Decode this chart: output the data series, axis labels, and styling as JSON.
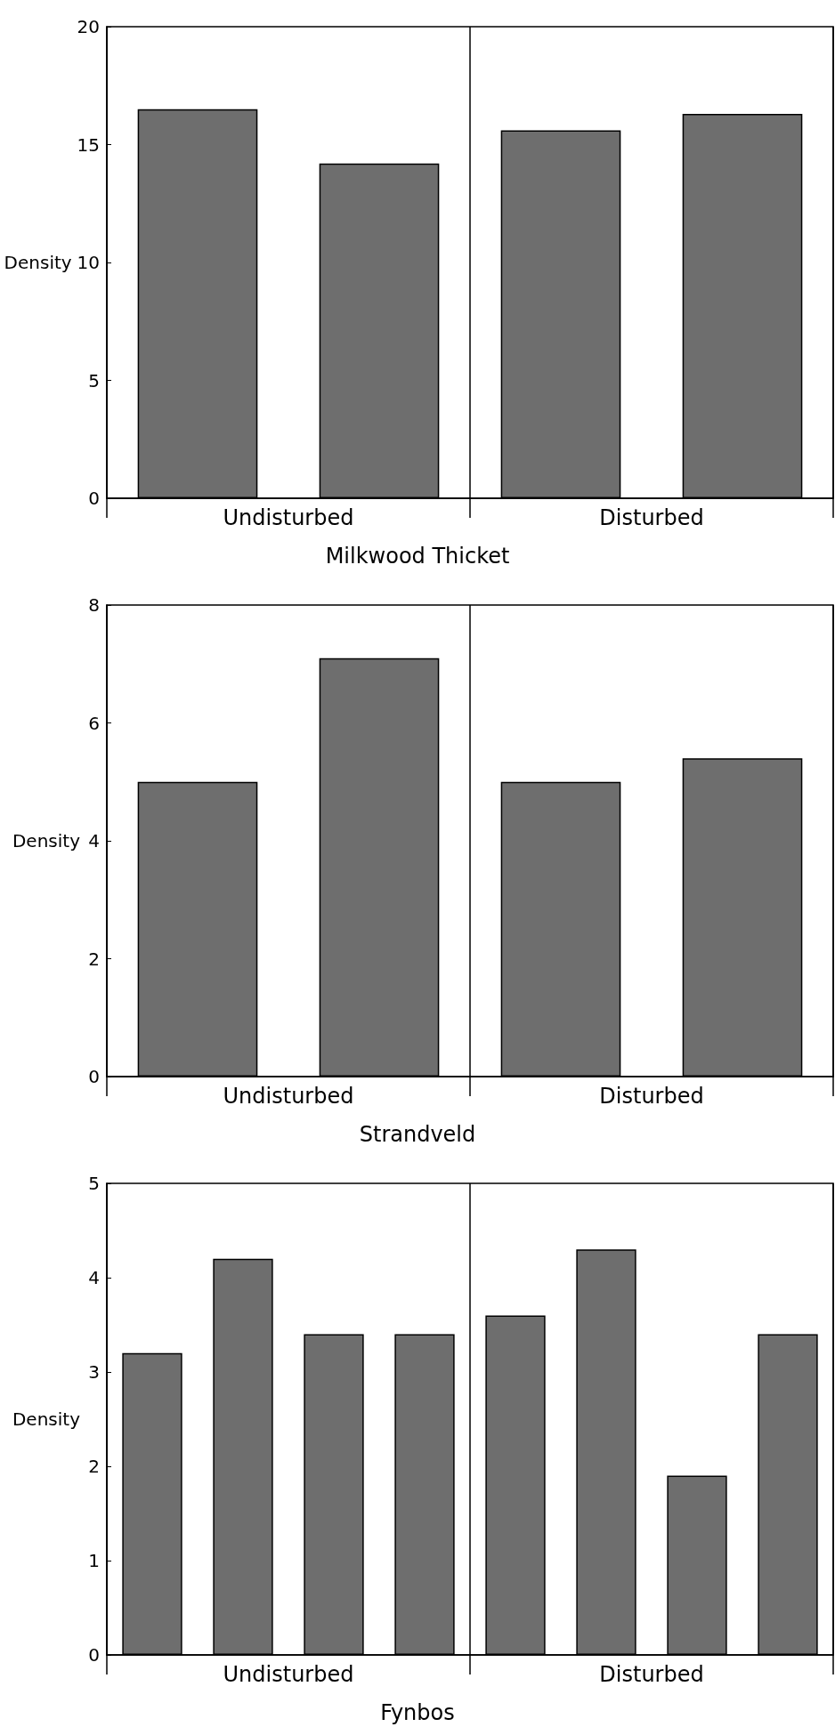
{
  "chart_data": [
    {
      "type": "bar",
      "xlabel": "Milkwood Thicket",
      "ylabel": "Density",
      "categories": [
        null,
        null,
        null,
        null
      ],
      "values": [
        16.5,
        14.2,
        15.6,
        16.3
      ],
      "color": "#6e6e6e",
      "ylim": [
        0,
        20
      ],
      "yticks": [
        0,
        5,
        10,
        15,
        20
      ],
      "grid": false,
      "annotations": [
        "Undisturbed",
        "Disturbed"
      ]
    },
    {
      "type": "bar",
      "xlabel": "Strandveld",
      "ylabel": "Density",
      "categories": [
        null,
        null,
        null,
        null
      ],
      "values": [
        5.0,
        7.1,
        5.0,
        5.4
      ],
      "color": "#6e6e6e",
      "ylim": [
        0,
        8
      ],
      "yticks": [
        0,
        2,
        4,
        6,
        8
      ],
      "grid": false,
      "annotations": [
        "Undisturbed",
        "Disturbed"
      ]
    },
    {
      "type": "bar",
      "xlabel": "Fynbos",
      "ylabel": "Density",
      "categories": [
        null,
        null,
        null,
        null,
        null,
        null,
        null,
        null
      ],
      "values": [
        3.2,
        4.2,
        3.4,
        3.4,
        3.6,
        4.3,
        1.9,
        3.4
      ],
      "color": "#6e6e6e",
      "ylim": [
        0,
        5
      ],
      "yticks": [
        0,
        1,
        2,
        3,
        4,
        5
      ],
      "grid": false,
      "annotations": [
        "Undisturbed",
        "Disturbed"
      ]
    }
  ]
}
